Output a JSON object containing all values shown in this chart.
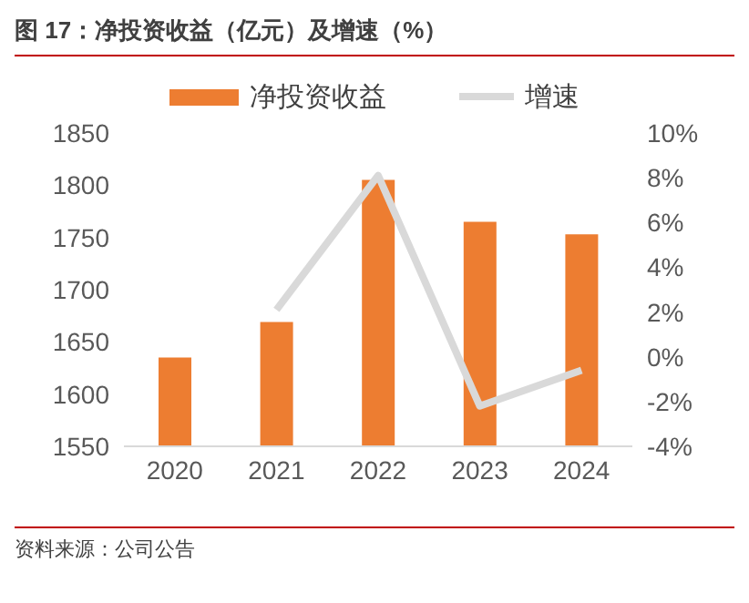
{
  "chart_data": {
    "type": "bar",
    "title": "图 17：净投资收益（亿元）及增速（%）",
    "categories": [
      "2020",
      "2021",
      "2022",
      "2023",
      "2024"
    ],
    "series": [
      {
        "name": "净投资收益",
        "color": "#ed7d31",
        "values": [
          1635,
          1669,
          1805,
          1765,
          1753
        ]
      },
      {
        "name": "增速",
        "type": "line",
        "axis": "y2",
        "color": "#d9d9d9",
        "values": [
          null,
          2.1,
          8.1,
          -2.2,
          -0.6
        ]
      }
    ],
    "ylim": [
      1550,
      1850
    ],
    "yticks": [
      1550,
      1600,
      1650,
      1700,
      1750,
      1800,
      1850
    ],
    "y2lim": [
      -4,
      10
    ],
    "y2ticks": [
      {
        "value": -4,
        "label": "-4%"
      },
      {
        "value": -2,
        "label": "-2%"
      },
      {
        "value": 0,
        "label": "0%"
      },
      {
        "value": 2,
        "label": "2%"
      },
      {
        "value": 4,
        "label": "4%"
      },
      {
        "value": 6,
        "label": "6%"
      },
      {
        "value": 8,
        "label": "8%"
      },
      {
        "value": 10,
        "label": "10%"
      }
    ],
    "grid": false,
    "legend": "top",
    "marker": "none",
    "annotations": [
      "资料来源：公司公告"
    ]
  }
}
